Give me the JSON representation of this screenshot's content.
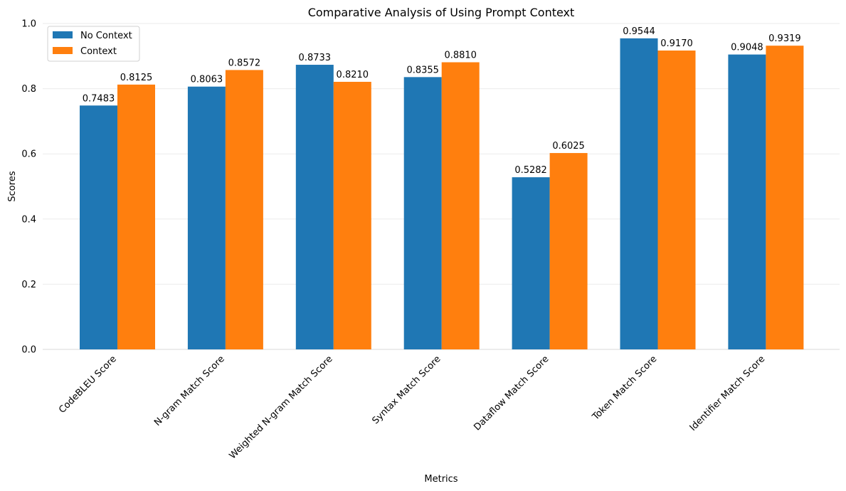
{
  "chart_data": {
    "type": "bar",
    "title": "Comparative Analysis of Using Prompt Context",
    "xlabel": "Metrics",
    "ylabel": "Scores",
    "ylim": [
      0,
      1.0
    ],
    "yticks": [
      "0.0",
      "0.2",
      "0.4",
      "0.6",
      "0.8",
      "1.0"
    ],
    "grid": true,
    "legend_position": "top-left",
    "categories": [
      "CodeBLEU Score",
      "N-gram Match Score",
      "Weighted N-gram Match Score",
      "Syntax Match Score",
      "Dataflow Match Score",
      "Token Match Score",
      "Identifier Match Score"
    ],
    "series": [
      {
        "name": "No Context",
        "color": "#1f77b4",
        "values": [
          0.7483,
          0.8063,
          0.8733,
          0.8355,
          0.5282,
          0.9544,
          0.9048
        ],
        "labels": [
          "0.7483",
          "0.8063",
          "0.8733",
          "0.8355",
          "0.5282",
          "0.9544",
          "0.9048"
        ]
      },
      {
        "name": "Context",
        "color": "#ff7f0e",
        "values": [
          0.8125,
          0.8572,
          0.821,
          0.881,
          0.6025,
          0.917,
          0.9319
        ],
        "labels": [
          "0.8125",
          "0.8572",
          "0.8210",
          "0.8810",
          "0.6025",
          "0.9170",
          "0.9319"
        ]
      }
    ]
  }
}
